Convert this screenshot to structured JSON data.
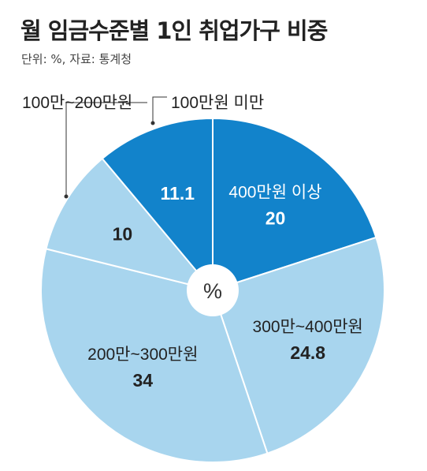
{
  "title": "월 임금수준별 1인 취업가구 비중",
  "source_note": "단위: %, 자료: 통계청",
  "colors": {
    "dark": "#1283CB",
    "light": "#A8D5EE",
    "dark_text": "#ffffff",
    "light_text": "#222222"
  },
  "chart_data": {
    "type": "pie",
    "unit": "%",
    "slices": [
      {
        "label": "400만원 이상",
        "value": 20,
        "value_text": "20",
        "shade": "dark",
        "callout": false
      },
      {
        "label": "300만~400만원",
        "value": 24.8,
        "value_text": "24.8",
        "shade": "light",
        "callout": false
      },
      {
        "label": "200만~300만원",
        "value": 34,
        "value_text": "34",
        "shade": "light",
        "callout": false
      },
      {
        "label": "100만~200만원",
        "value": 10,
        "value_text": "10",
        "shade": "light",
        "callout": true
      },
      {
        "label": "100만원 미만",
        "value": 11.1,
        "value_text": "11.1",
        "shade": "dark",
        "callout": true
      }
    ]
  }
}
